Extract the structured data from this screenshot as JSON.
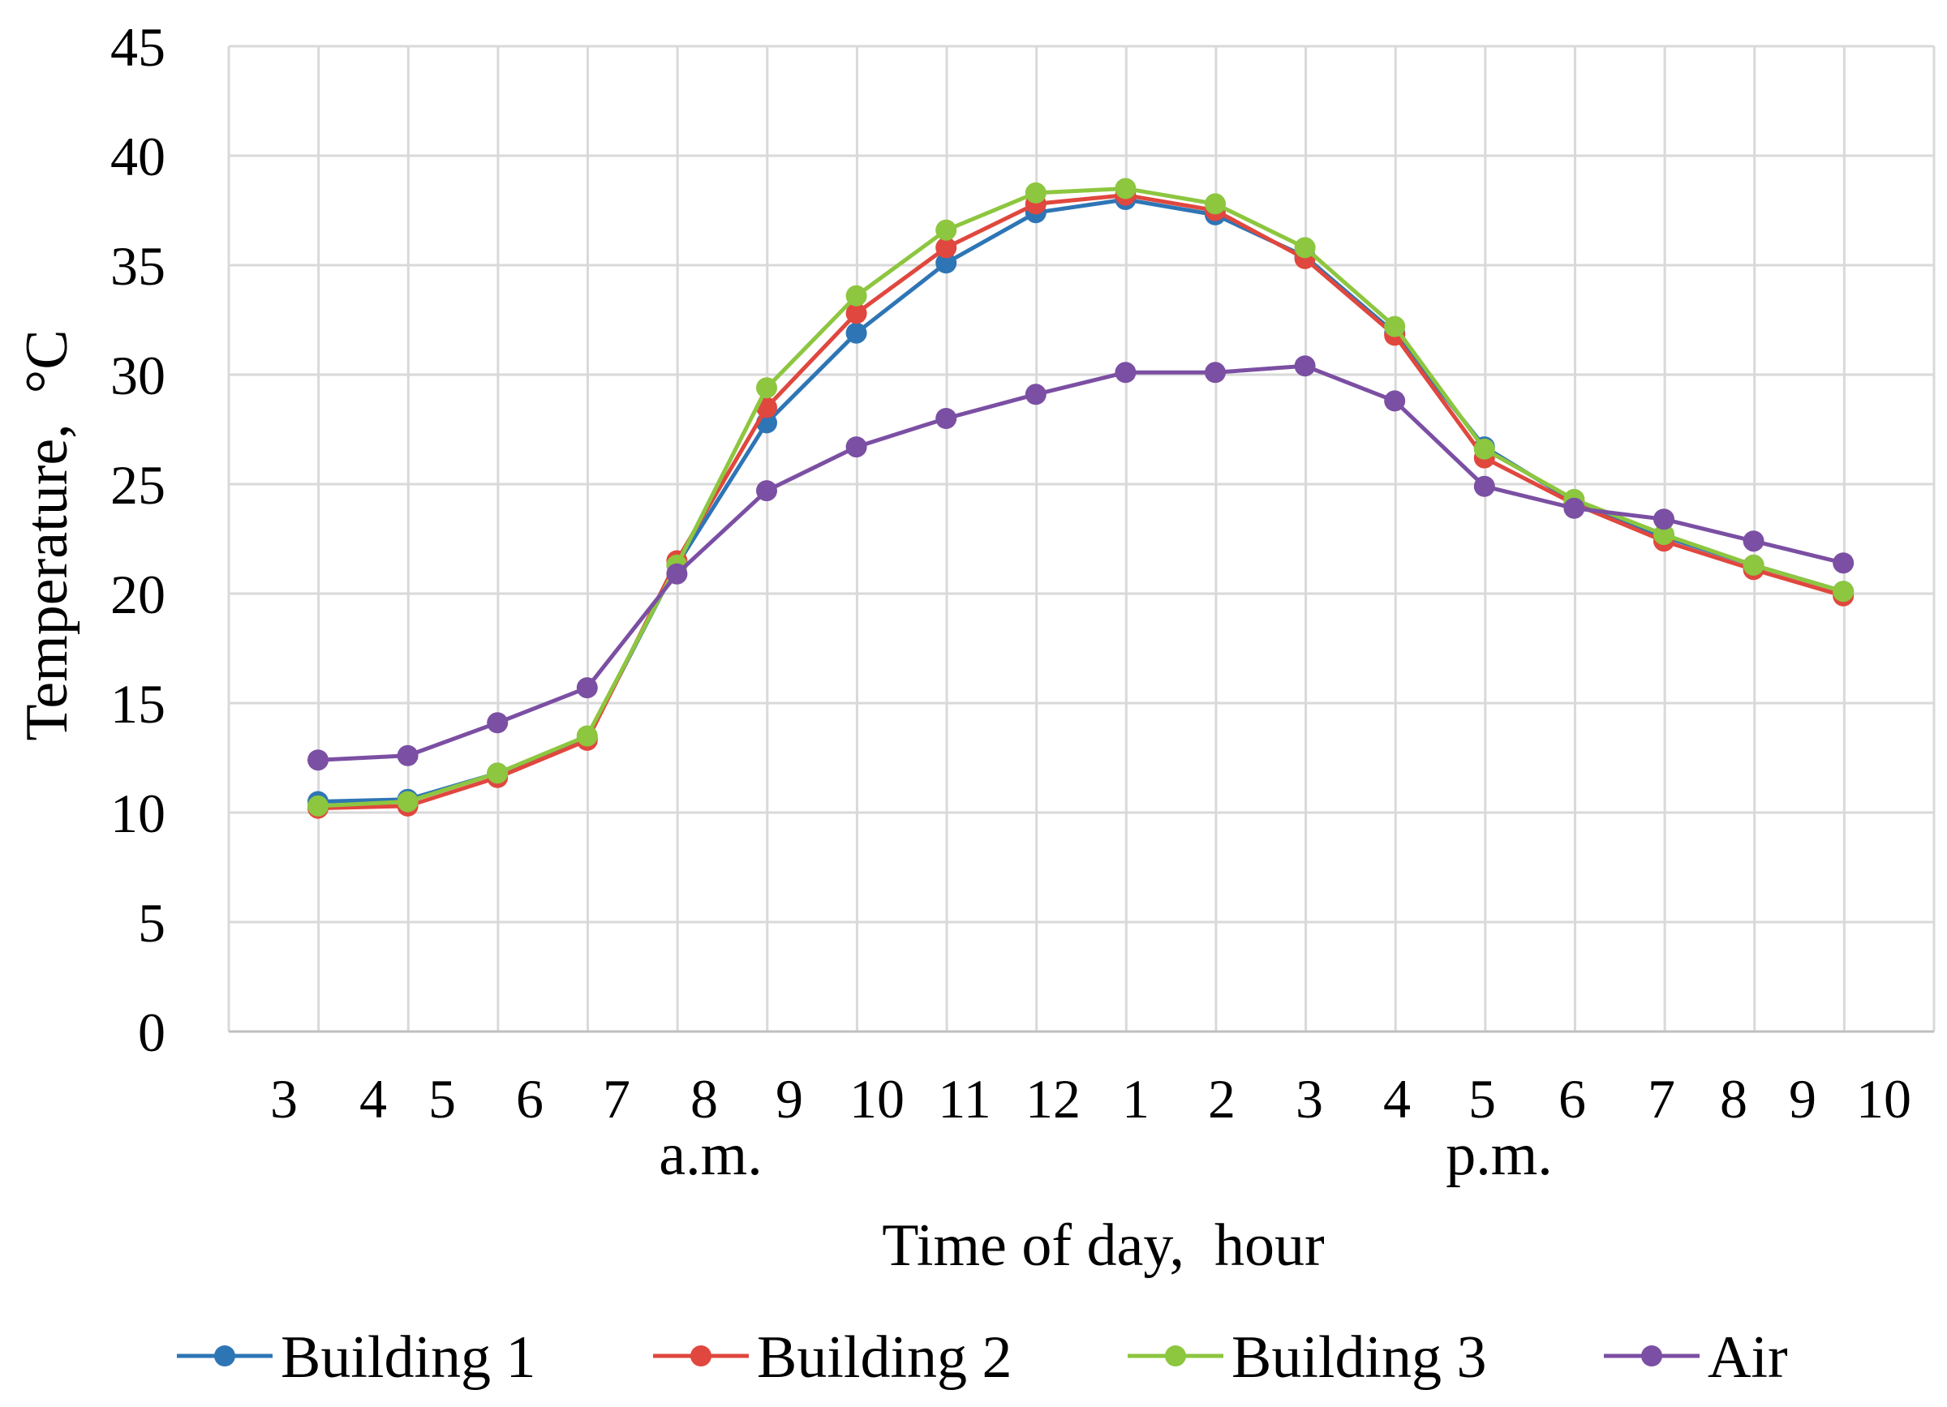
{
  "chart_data": {
    "type": "line",
    "title": "",
    "xlabel": "Time of day,  hour",
    "ylabel": "Temperature,  °C",
    "ylim": [
      0,
      45
    ],
    "y_ticks": [
      "0",
      "5",
      "10",
      "15",
      "20",
      "25",
      "30",
      "35",
      "40",
      "45"
    ],
    "x_ticks": [
      "3",
      "4",
      "5",
      "6",
      "7",
      "8",
      "9",
      "10",
      "11",
      "12",
      "1",
      "2",
      "3",
      "4",
      "5",
      "6",
      "7",
      "8",
      "9",
      "10"
    ],
    "period_labels": {
      "am": "a.m.",
      "pm": "p.m."
    },
    "grid": true,
    "legend_position": "bottom",
    "series": [
      {
        "name": "Building 1",
        "color": "#2E75B6",
        "values": [
          10.5,
          10.6,
          11.8,
          13.4,
          21.3,
          27.8,
          31.9,
          35.1,
          37.4,
          38.0,
          37.3,
          35.4,
          31.9,
          26.7,
          24.2,
          22.6,
          21.3,
          20.1
        ]
      },
      {
        "name": "Building 2",
        "color": "#E0473E",
        "values": [
          10.2,
          10.3,
          11.6,
          13.3,
          21.5,
          28.5,
          32.8,
          35.8,
          37.8,
          38.2,
          37.5,
          35.3,
          31.8,
          26.2,
          24.1,
          22.4,
          21.1,
          19.9
        ]
      },
      {
        "name": "Building 3",
        "color": "#8DC63F",
        "values": [
          10.3,
          10.5,
          11.8,
          13.5,
          21.3,
          29.4,
          33.6,
          36.6,
          38.3,
          38.5,
          37.8,
          35.8,
          32.2,
          26.6,
          24.3,
          22.7,
          21.3,
          20.1
        ]
      },
      {
        "name": "Air",
        "color": "#7B4FA3",
        "values": [
          12.4,
          12.6,
          14.1,
          15.7,
          20.9,
          24.7,
          26.7,
          28.0,
          29.1,
          30.1,
          30.1,
          30.4,
          28.8,
          24.9,
          23.9,
          23.4,
          22.4,
          21.4
        ]
      }
    ]
  }
}
